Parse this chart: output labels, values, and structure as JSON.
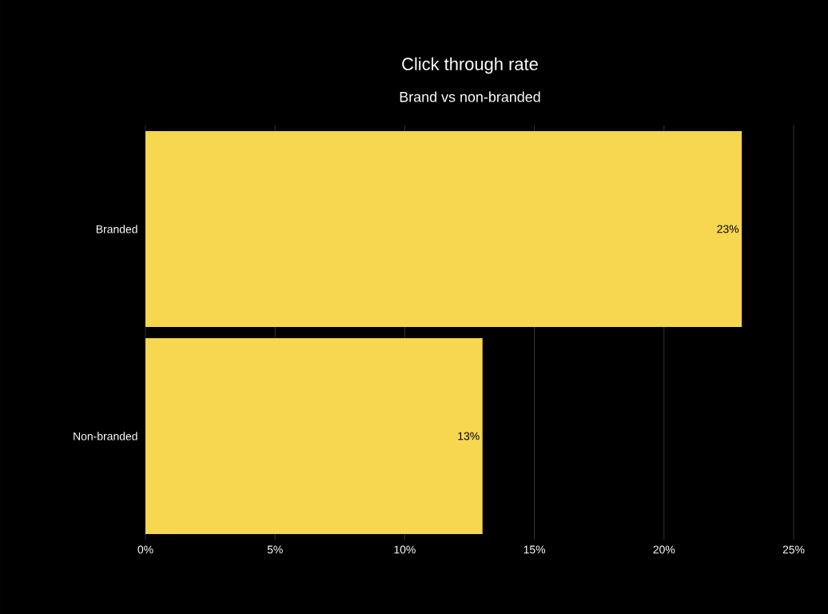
{
  "chart_data": {
    "type": "bar",
    "orientation": "horizontal",
    "title": "Click through rate",
    "subtitle": "Brand vs non-branded",
    "categories": [
      "Branded",
      "Non-branded"
    ],
    "values": [
      23,
      13
    ],
    "value_labels": [
      "23%",
      "13%"
    ],
    "color": "#f7d650",
    "xlim": [
      0,
      25
    ],
    "xticks": [
      {
        "value": 0,
        "label": "0%"
      },
      {
        "value": 5,
        "label": "5%"
      },
      {
        "value": 10,
        "label": "10%"
      },
      {
        "value": 15,
        "label": "15%"
      },
      {
        "value": 20,
        "label": "20%"
      },
      {
        "value": 25,
        "label": "25%"
      }
    ],
    "grid": "x"
  }
}
